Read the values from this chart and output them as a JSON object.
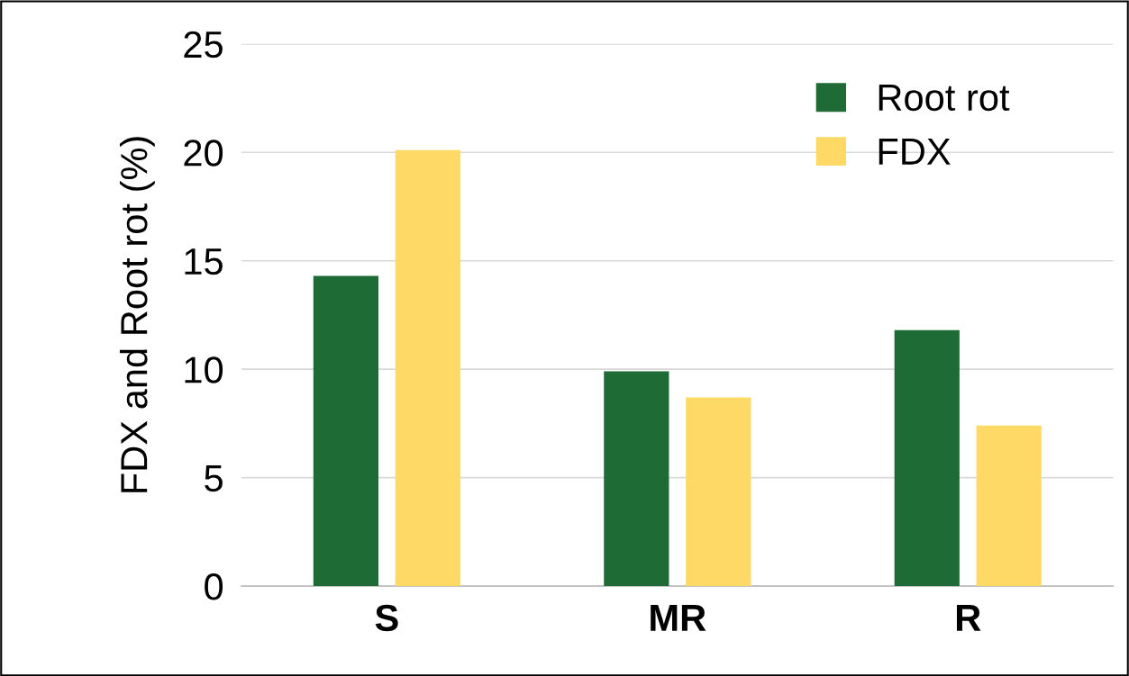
{
  "chart_data": {
    "type": "bar",
    "ylabel": "FDX and Root rot (%)",
    "categories": [
      "S",
      "MR",
      "R"
    ],
    "series": [
      {
        "name": "Root rot",
        "color": "#1e6b35",
        "values": [
          14.3,
          9.9,
          11.8
        ]
      },
      {
        "name": "FDX",
        "color": "#ffd966",
        "values": [
          20.1,
          8.7,
          7.4
        ]
      }
    ],
    "ylim": [
      0,
      25
    ],
    "yticks": [
      0,
      5,
      10,
      15,
      20,
      25
    ],
    "grid": "y",
    "legend": "top right"
  }
}
